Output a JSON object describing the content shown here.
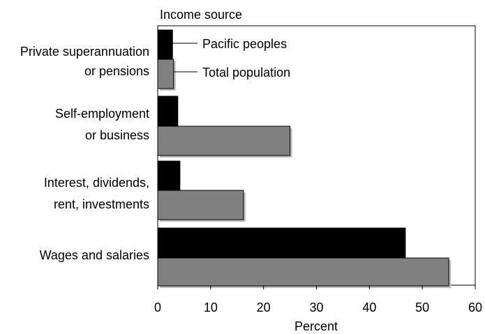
{
  "chart_data": {
    "type": "bar",
    "orientation": "horizontal",
    "title": "Income source",
    "xlabel": "Percent",
    "ylabel": "",
    "xlim": [
      0,
      60
    ],
    "x_ticks": [
      "0",
      "10",
      "20",
      "30",
      "40",
      "50",
      "60"
    ],
    "grid": false,
    "legend_placement": "top, beside first category bars",
    "categories": [
      [
        "Private superannuation",
        "or pensions"
      ],
      [
        "Self-employment",
        "or business"
      ],
      [
        "Interest, dividends,",
        "rent, investments"
      ],
      [
        "Wages and salaries"
      ]
    ],
    "series": [
      {
        "name": "Pacific peoples",
        "color": "#000000",
        "values": [
          2.8,
          3.8,
          4.2,
          46.8
        ]
      },
      {
        "name": "Total population",
        "color": "#808080",
        "values": [
          3.0,
          25.0,
          16.2,
          55.0
        ]
      }
    ]
  }
}
